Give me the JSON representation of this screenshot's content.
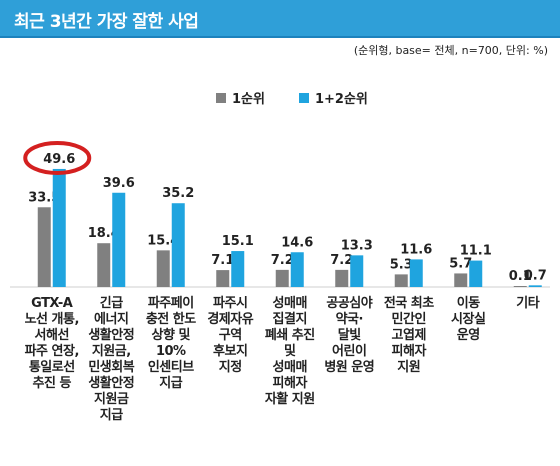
{
  "header": {
    "title": "최근 3년간 가장 잘한 사업"
  },
  "note": "(순위형, base= 전체, n=700, 단위: %)",
  "colors": {
    "series1": "#808080",
    "series2": "#1fa4df",
    "highlight": "#d42020",
    "title_bar": "#2f9fd8"
  },
  "chart_data": {
    "type": "bar",
    "categories": [
      "GTX-A\n노선 개통,\n서해선\n파주 연장,\n통일로선\n추진 등",
      "긴급\n에너지\n생활안정\n지원금,\n민생회복\n생활안정\n지원금\n지급",
      "파주페이\n충전 한도\n상향 및\n10%\n인센티브\n지급",
      "파주시\n경제자유\n구역\n후보지\n지정",
      "성매매\n집결지\n폐쇄 추진\n및\n성매매\n피해자\n자활 지원",
      "공공심야\n약국·\n달빛\n어린이\n병원 운영",
      "전국 최초\n민간인\n고엽제\n피해자\n지원",
      "이동\n시장실\n운영",
      "기타"
    ],
    "series": [
      {
        "name": "1순위",
        "values": [
          33.5,
          18.4,
          15.4,
          7.1,
          7.2,
          7.2,
          5.3,
          5.7,
          0.1
        ]
      },
      {
        "name": "1+2순위",
        "values": [
          49.6,
          39.6,
          35.2,
          15.1,
          14.6,
          13.3,
          11.6,
          11.1,
          0.7
        ]
      }
    ],
    "ylim": [
      0,
      50
    ],
    "grid": false,
    "legend_position": "top",
    "highlight": {
      "category_index": 0,
      "series_index": 1,
      "style": "red ellipse around value"
    }
  }
}
